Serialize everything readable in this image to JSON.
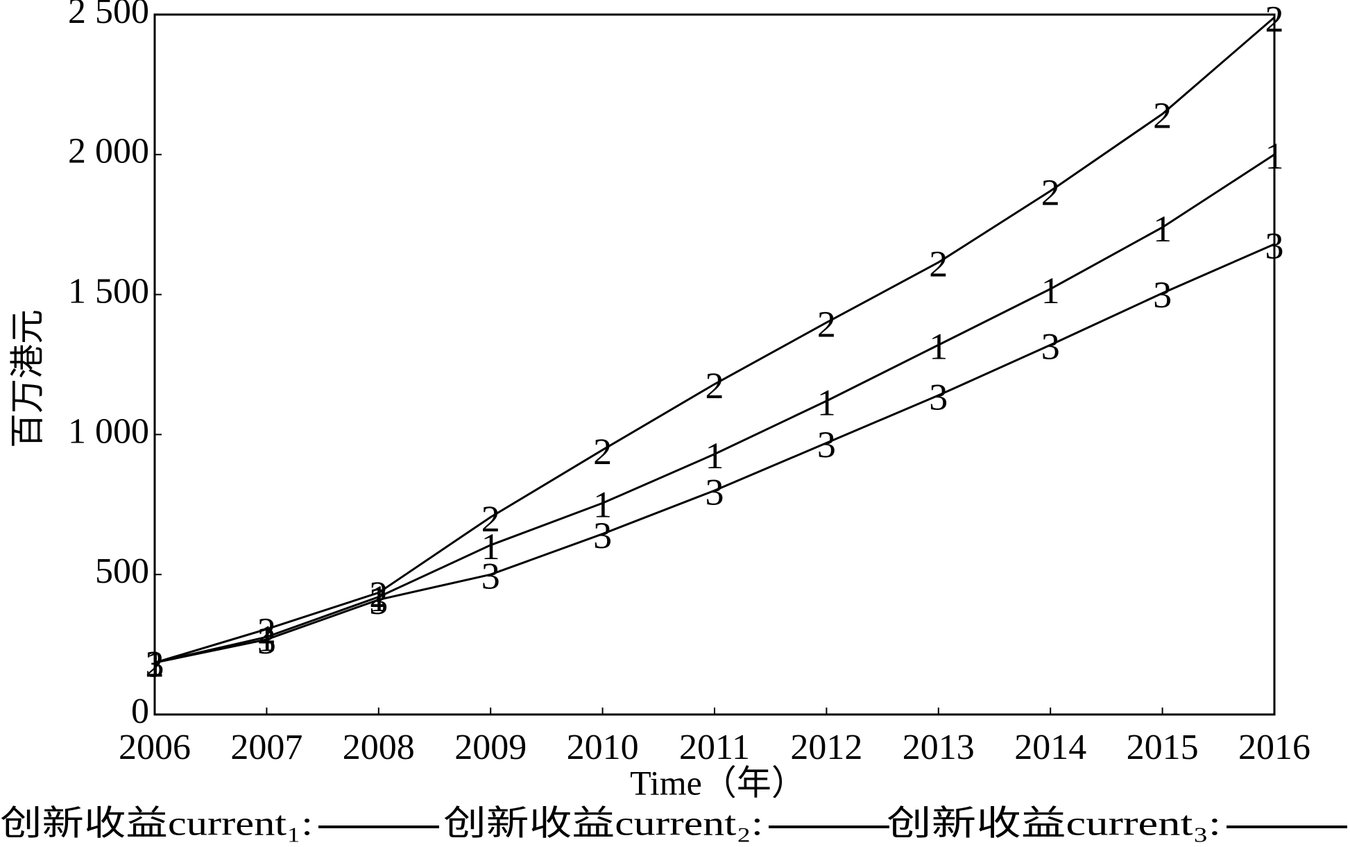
{
  "chart_data": {
    "type": "line",
    "x_label": "Time（年）",
    "y_label": "百万港元",
    "x": [
      2006,
      2007,
      2008,
      2009,
      2010,
      2011,
      2012,
      2013,
      2014,
      2015,
      2016
    ],
    "xlim": [
      2006,
      2016
    ],
    "xticks": [
      2006,
      2007,
      2008,
      2009,
      2010,
      2011,
      2012,
      2013,
      2014,
      2015,
      2016
    ],
    "ylim": [
      0,
      2500
    ],
    "yticks": [
      0,
      500,
      {
        "value": 1000,
        "label": "1 000"
      },
      {
        "value": 1500,
        "label": "1 500"
      },
      {
        "value": 2000,
        "label": "2 000"
      },
      {
        "value": 2500,
        "label": "2 500"
      }
    ],
    "series": [
      {
        "name": "创新收益current₁:",
        "marker": "1",
        "color": "#000000",
        "values": [
          185,
          277,
          420,
          605,
          755,
          930,
          1120,
          1320,
          1520,
          1740,
          2000
        ]
      },
      {
        "name": "创新收益current₂:",
        "marker": "2",
        "color": "#000000",
        "values": [
          185,
          305,
          435,
          705,
          945,
          1180,
          1400,
          1615,
          1870,
          2145,
          2490
        ]
      },
      {
        "name": "创新收益current₃:",
        "marker": "3",
        "color": "#000000",
        "values": [
          185,
          268,
          410,
          500,
          645,
          800,
          970,
          1140,
          1320,
          1505,
          1680
        ]
      }
    ]
  }
}
